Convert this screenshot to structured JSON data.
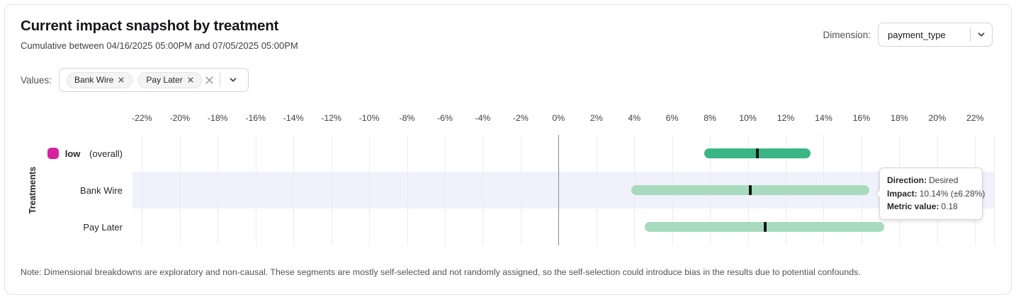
{
  "header": {
    "title": "Current impact snapshot by treatment",
    "subtitle": "Cumulative between 04/16/2025 05:00PM and 07/05/2025 05:00PM",
    "dimension_label": "Dimension:",
    "dimension_value": "payment_type"
  },
  "filters": {
    "label": "Values:",
    "chips": [
      {
        "label": "Bank Wire"
      },
      {
        "label": "Pay Later"
      }
    ]
  },
  "chart_data": {
    "type": "bar",
    "orientation": "horizontal-interval",
    "title": "Current impact snapshot by treatment",
    "ylabel": "Treatments",
    "xlabel": "",
    "xlim": [
      -22.5,
      23
    ],
    "ticks": [
      -22,
      -20,
      -18,
      -16,
      -14,
      -12,
      -10,
      -8,
      -6,
      -4,
      -2,
      0,
      2,
      4,
      6,
      8,
      10,
      12,
      14,
      16,
      18,
      20,
      22
    ],
    "tick_suffix": "%",
    "grid": true,
    "rows": [
      {
        "label": "low",
        "label_suffix": "(overall)",
        "legend_color": "#d6219c",
        "bar_color": "#39b683",
        "impact_pct": 10.5,
        "ci_low_pct": 7.7,
        "ci_high_pct": 13.3,
        "highlighted": false
      },
      {
        "label": "Bank Wire",
        "label_suffix": "",
        "legend_color": null,
        "bar_color": "#a8dbbe",
        "impact_pct": 10.14,
        "ci_low_pct": 3.86,
        "ci_high_pct": 16.42,
        "highlighted": true
      },
      {
        "label": "Pay Later",
        "label_suffix": "",
        "legend_color": null,
        "bar_color": "#a8dbbe",
        "impact_pct": 10.9,
        "ci_low_pct": 4.55,
        "ci_high_pct": 17.2,
        "highlighted": false
      }
    ]
  },
  "tooltip": {
    "direction_label": "Direction:",
    "direction_value": "Desired",
    "impact_label": "Impact:",
    "impact_value": "10.14% (±6.28%)",
    "metric_label": "Metric value:",
    "metric_value": "0.18"
  },
  "note": "Note: Dimensional breakdowns are exploratory and non-causal. These segments are mostly self-selected and not randomly assigned, so the self-selection could introduce bias in the results due to potential confounds."
}
